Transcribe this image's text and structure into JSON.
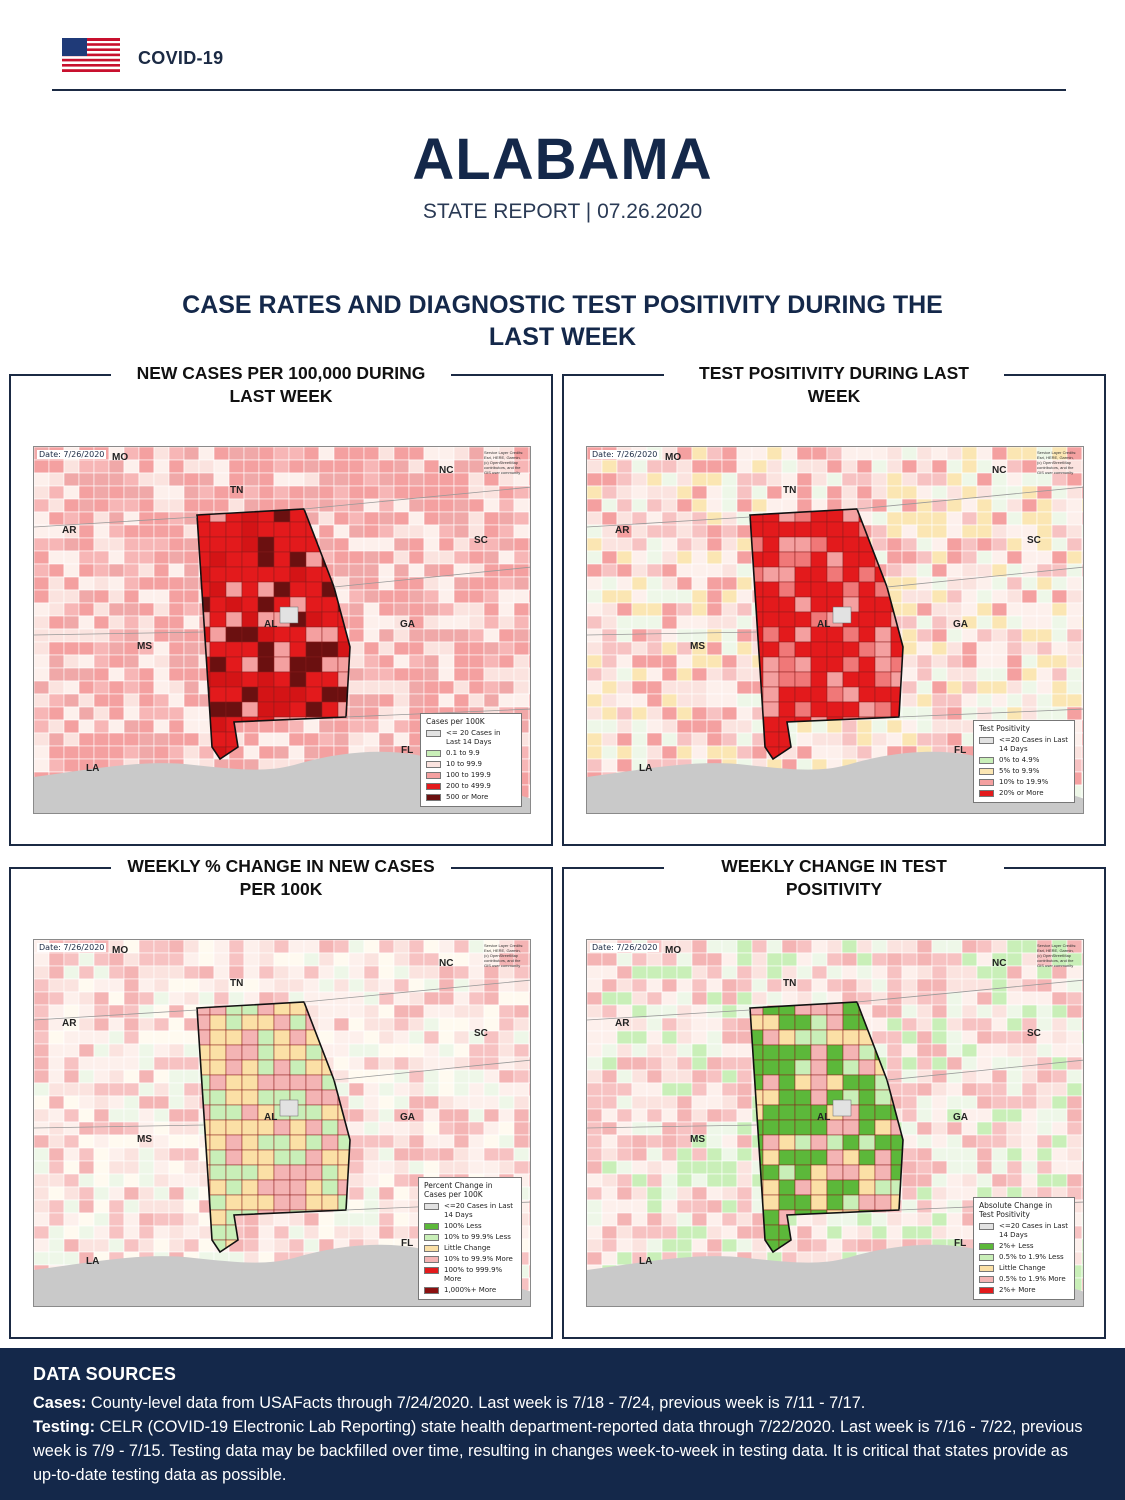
{
  "header": {
    "label": "COVID-19",
    "flag_icon": "us-flag-icon"
  },
  "report": {
    "state": "ALABAMA",
    "subtitle": "STATE REPORT | 07.26.2020"
  },
  "section": {
    "title": "CASE RATES AND DIAGNOSTIC TEST POSITIVITY DURING THE LAST WEEK"
  },
  "map_common": {
    "date": "Date: 7/26/2020",
    "credit": "Service Layer Credits: Esri, HERE, Garmin, (c) OpenStreetMap contributors, and the GIS user community",
    "labels": {
      "mo": "MO",
      "nc": "NC",
      "tn": "TN",
      "ar": "AR",
      "sc": "SC",
      "al": "AL",
      "ga": "GA",
      "ms": "MS",
      "fl": "FL",
      "la": "LA"
    }
  },
  "panels": [
    {
      "title": "NEW CASES PER 100,000 DURING LAST WEEK",
      "legend_title": "Cases per 100K",
      "legend": [
        {
          "label": "<= 20 Cases in Last 14 Days",
          "color": "#e2e2e2"
        },
        {
          "label": "0.1 to 9.9",
          "color": "#c9efb8"
        },
        {
          "label": "10 to 99.9",
          "color": "#fbe3df"
        },
        {
          "label": "100 to 199.9",
          "color": "#f4a0a0"
        },
        {
          "label": "200 to 499.9",
          "color": "#e31a1c"
        },
        {
          "label": "500 or More",
          "color": "#6b1010"
        }
      ]
    },
    {
      "title": "TEST POSITIVITY DURING LAST WEEK",
      "legend_title": "Test Positivity",
      "legend": [
        {
          "label": "<=20 Cases in Last 14 Days",
          "color": "#e2e2e2"
        },
        {
          "label": "0% to 4.9%",
          "color": "#c9efb8"
        },
        {
          "label": "5% to 9.9%",
          "color": "#fbe6b3"
        },
        {
          "label": "10% to 19.9%",
          "color": "#f4a0a0"
        },
        {
          "label": "20% or More",
          "color": "#e31a1c"
        }
      ]
    },
    {
      "title": "WEEKLY % CHANGE IN NEW CASES PER 100K",
      "legend_title": "Percent Change in Cases per 100K",
      "legend": [
        {
          "label": "<=20 Cases in Last 14 Days",
          "color": "#e2e2e2"
        },
        {
          "label": "100% Less",
          "color": "#5cb83a"
        },
        {
          "label": "10% to 99.9% Less",
          "color": "#c9efb8"
        },
        {
          "label": "Little Change",
          "color": "#fbe0a6"
        },
        {
          "label": "10% to 99.9% More",
          "color": "#f4b4b4"
        },
        {
          "label": "100% to 999.9% More",
          "color": "#e31a1c"
        },
        {
          "label": "1,000%+ More",
          "color": "#8b1010"
        }
      ]
    },
    {
      "title": "WEEKLY CHANGE IN TEST POSITIVITY",
      "legend_title": "Absolute Change in Test Positivity",
      "legend": [
        {
          "label": "<=20 Cases in Last 14 Days",
          "color": "#e2e2e2"
        },
        {
          "label": "2%+ Less",
          "color": "#5cb83a"
        },
        {
          "label": "0.5% to 1.9% Less",
          "color": "#c9efb8"
        },
        {
          "label": "Little Change",
          "color": "#fbe0a6"
        },
        {
          "label": "0.5% to 1.9% More",
          "color": "#f4b4b4"
        },
        {
          "label": "2%+ More",
          "color": "#e31a1c"
        }
      ]
    }
  ],
  "footer": {
    "title": "DATA SOURCES",
    "cases_label": "Cases:",
    "cases_text": " County-level data from USAFacts through 7/24/2020. Last week is 7/18 - 7/24, previous week is 7/11 - 7/17.",
    "testing_label": "Testing:",
    "testing_text": " CELR (COVID-19 Electronic Lab Reporting) state health department-reported data through 7/22/2020. Last week is 7/16 - 7/22, previous week is 7/9 - 7/15. Testing data may be backfilled over time, resulting in changes week-to-week in testing data. It is critical that states provide as up-to-date testing data as possible."
  }
}
